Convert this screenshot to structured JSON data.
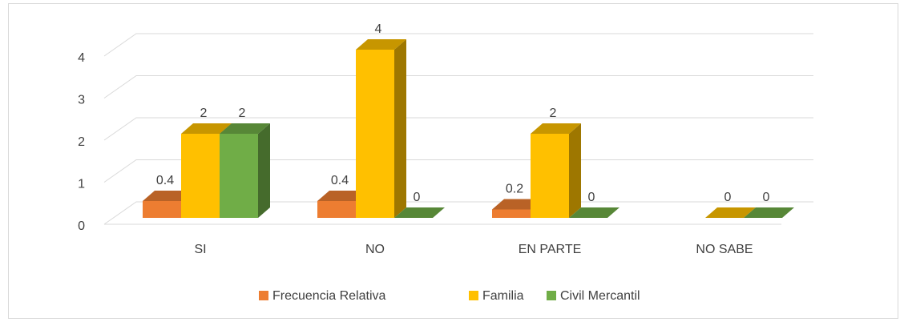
{
  "chart_data": {
    "type": "bar3d",
    "categories": [
      "SI",
      "NO",
      "EN PARTE",
      "NO SABE"
    ],
    "series": [
      {
        "name": "Frecuencia Relativa",
        "color": "#ed7d31",
        "values": [
          0.4,
          0.4,
          0.2,
          null
        ]
      },
      {
        "name": "Familia",
        "color": "#ffc000",
        "values": [
          2,
          4,
          2,
          0
        ]
      },
      {
        "name": "Civil Mercantil",
        "color": "#70ad47",
        "values": [
          2,
          0,
          0,
          0
        ]
      }
    ],
    "ylim": [
      0,
      4
    ],
    "yticks": [
      0,
      1,
      2,
      3,
      4
    ],
    "grid": true,
    "legend": "bottom"
  }
}
